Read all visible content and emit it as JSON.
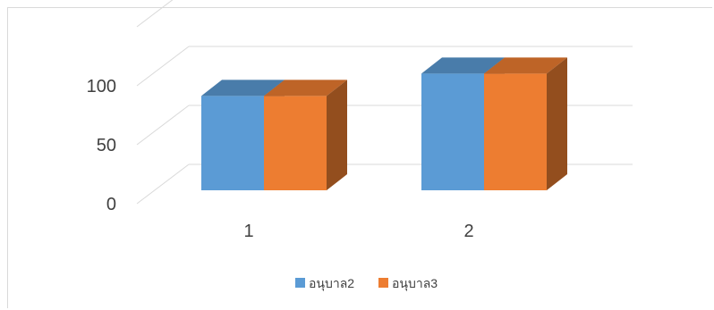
{
  "chart_data": {
    "type": "bar",
    "subtype": "3d-clustered-column",
    "categories": [
      "1",
      "2"
    ],
    "series": [
      {
        "name": "อนุบาล2",
        "values": [
          80,
          99
        ],
        "color": "#5b9bd5"
      },
      {
        "name": "อนุบาล3",
        "values": [
          80,
          99
        ],
        "color": "#ed7d31"
      }
    ],
    "y_ticks": [
      "0",
      "50",
      "100"
    ],
    "ylim": [
      0,
      150
    ],
    "grid": true,
    "legend_position": "bottom"
  }
}
